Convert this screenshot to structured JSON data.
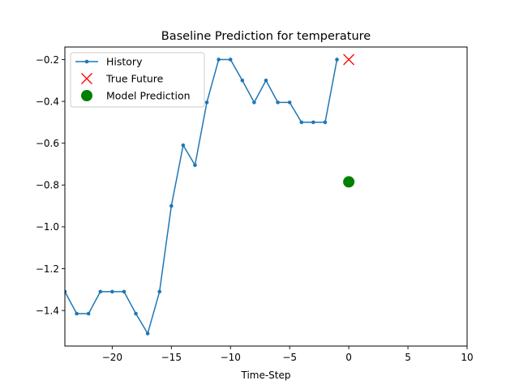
{
  "chart_data": {
    "type": "line",
    "title": "Baseline Prediction for temperature",
    "xlabel": "Time-Step",
    "ylabel": "",
    "xlim": [
      -24,
      10
    ],
    "ylim": [
      -1.57,
      -0.14
    ],
    "xticks": [
      -20,
      -15,
      -10,
      -5,
      0,
      5,
      10
    ],
    "xtick_labels": [
      "−20",
      "−15",
      "−10",
      "−5",
      "0",
      "5",
      "10"
    ],
    "yticks": [
      -1.4,
      -1.2,
      -1.0,
      -0.8,
      -0.6,
      -0.4,
      -0.2
    ],
    "ytick_labels": [
      "−1.4",
      "−1.2",
      "−1.0",
      "−0.8",
      "−0.6",
      "−0.4",
      "−0.2"
    ],
    "grid": false,
    "legend_position": "top-left",
    "series": [
      {
        "name": "History",
        "kind": "line-marker",
        "color": "#1f77b4",
        "x": [
          -24,
          -23,
          -22,
          -21,
          -20,
          -19,
          -18,
          -17,
          -16,
          -15,
          -14,
          -13,
          -12,
          -11,
          -10,
          -9,
          -8,
          -7,
          -6,
          -5,
          -4,
          -3,
          -2,
          -1
        ],
        "y": [
          -1.31,
          -1.415,
          -1.415,
          -1.31,
          -1.31,
          -1.31,
          -1.415,
          -1.51,
          -1.31,
          -0.9,
          -0.61,
          -0.705,
          -0.405,
          -0.2,
          -0.2,
          -0.3,
          -0.405,
          -0.3,
          -0.405,
          -0.405,
          -0.5,
          -0.5,
          -0.5,
          -0.2
        ]
      },
      {
        "name": "True Future",
        "kind": "x-marker",
        "color": "#ff0000",
        "x": [
          0
        ],
        "y": [
          -0.2
        ]
      },
      {
        "name": "Model Prediction",
        "kind": "dot",
        "color": "#008000",
        "x": [
          0
        ],
        "y": [
          -0.785
        ]
      }
    ]
  }
}
